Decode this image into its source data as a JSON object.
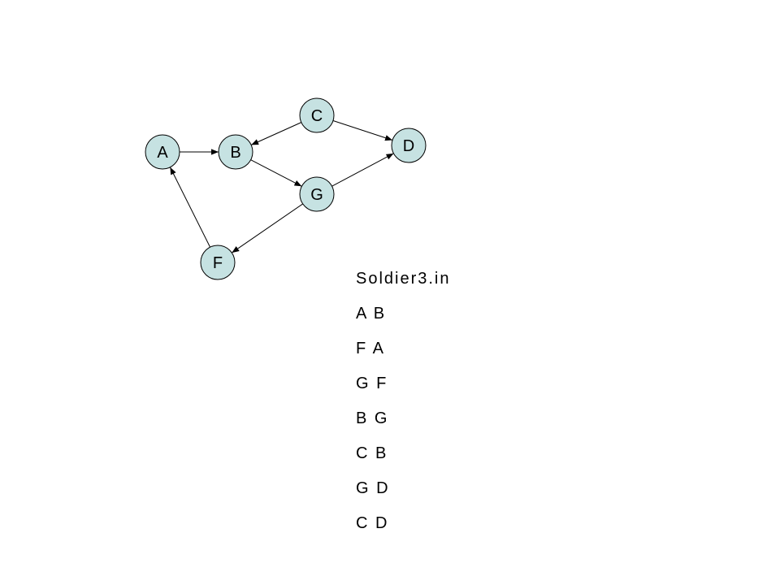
{
  "graph": {
    "nodes": [
      {
        "id": "A",
        "label": "A"
      },
      {
        "id": "B",
        "label": "B"
      },
      {
        "id": "C",
        "label": "C"
      },
      {
        "id": "D",
        "label": "D"
      },
      {
        "id": "G",
        "label": "G"
      },
      {
        "id": "F",
        "label": "F"
      }
    ],
    "edges": [
      {
        "from": "A",
        "to": "B"
      },
      {
        "from": "F",
        "to": "A"
      },
      {
        "from": "G",
        "to": "F"
      },
      {
        "from": "B",
        "to": "G"
      },
      {
        "from": "C",
        "to": "B"
      },
      {
        "from": "G",
        "to": "D"
      },
      {
        "from": "C",
        "to": "D"
      }
    ],
    "node_fill": "#c6e2e2",
    "stroke_color": "#000000"
  },
  "input_file": {
    "name": "Soldier3.in",
    "lines": [
      "A B",
      "F A",
      "G F",
      "B G",
      "C B",
      "G D",
      "C D"
    ]
  }
}
